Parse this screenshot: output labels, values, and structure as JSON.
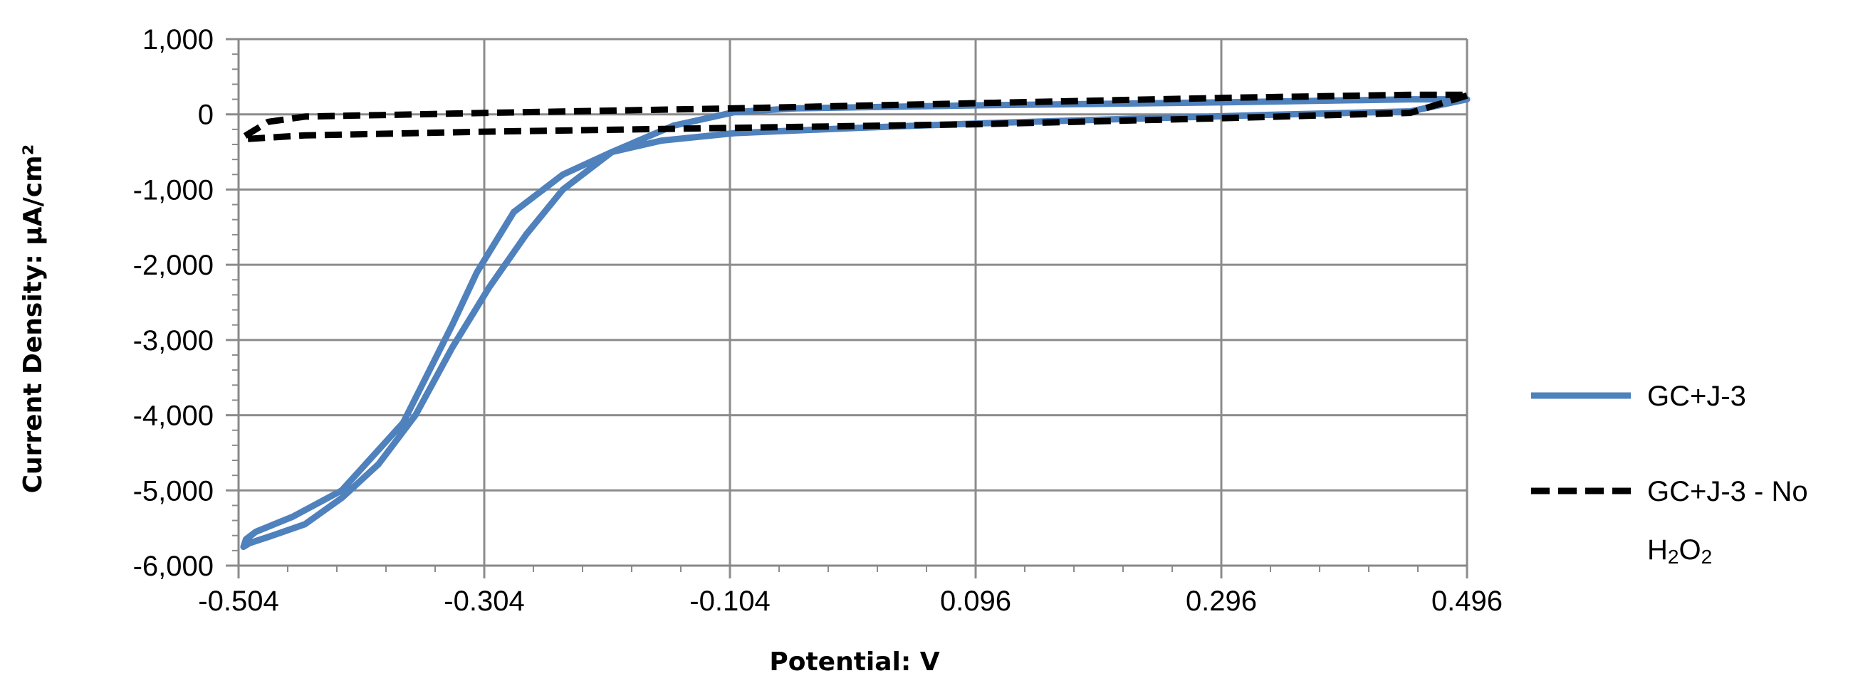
{
  "chart_data": {
    "type": "line",
    "title": "",
    "xlabel": "Potential: V",
    "ylabel": "Current Density: µA/cm²",
    "xlim": [
      -0.504,
      0.496
    ],
    "ylim": [
      -6000,
      1000
    ],
    "x_ticks": [
      -0.504,
      -0.304,
      -0.104,
      0.096,
      0.296,
      0.496
    ],
    "x_tick_labels": [
      "-0.504",
      "-0.304",
      "-0.104",
      "0.096",
      "0.296",
      "0.496"
    ],
    "y_ticks": [
      1000,
      0,
      -1000,
      -2000,
      -3000,
      -4000,
      -5000,
      -6000
    ],
    "y_tick_labels": [
      "1,000",
      "0",
      "-1,000",
      "-2,000",
      "-3,000",
      "-4,000",
      "-5,000",
      "-6,000"
    ],
    "grid": true,
    "legend_position": "right",
    "series": [
      {
        "name": "GC+J-3",
        "legend_label": "GC+J-3",
        "color": "#4f81bd",
        "style": "solid",
        "x": [
          0.496,
          0.45,
          0.35,
          0.2,
          0.1,
          0.0,
          -0.1,
          -0.16,
          -0.2,
          -0.24,
          -0.28,
          -0.31,
          -0.33,
          -0.37,
          -0.42,
          -0.46,
          -0.49,
          -0.498,
          -0.5,
          -0.495,
          -0.48,
          -0.45,
          -0.42,
          -0.39,
          -0.36,
          -0.33,
          -0.3,
          -0.27,
          -0.24,
          -0.2,
          -0.15,
          -0.1,
          -0.05,
          0.1,
          0.3,
          0.45,
          0.496
        ],
        "y": [
          200,
          40,
          0,
          -70,
          -120,
          -180,
          -250,
          -350,
          -500,
          -800,
          -1300,
          -2100,
          -2800,
          -4100,
          -5000,
          -5350,
          -5550,
          -5650,
          -5750,
          -5700,
          -5620,
          -5450,
          -5100,
          -4650,
          -4000,
          -3100,
          -2300,
          -1600,
          -1000,
          -500,
          -150,
          30,
          80,
          120,
          160,
          200,
          200
        ]
      },
      {
        "name": "GC+J-3 - No H2O2",
        "legend_label_line1": "GC+J-3 - No",
        "legend_label_line2": "H2O2",
        "color": "#000000",
        "style": "dashed",
        "x": [
          0.496,
          0.45,
          0.3,
          0.1,
          -0.1,
          -0.3,
          -0.45,
          -0.5,
          -0.5,
          -0.48,
          -0.45,
          -0.3,
          -0.1,
          0.1,
          0.3,
          0.45,
          0.496
        ],
        "y": [
          250,
          20,
          -50,
          -130,
          -180,
          -230,
          -280,
          -330,
          -300,
          -100,
          -30,
          20,
          80,
          150,
          220,
          260,
          260
        ]
      }
    ]
  }
}
